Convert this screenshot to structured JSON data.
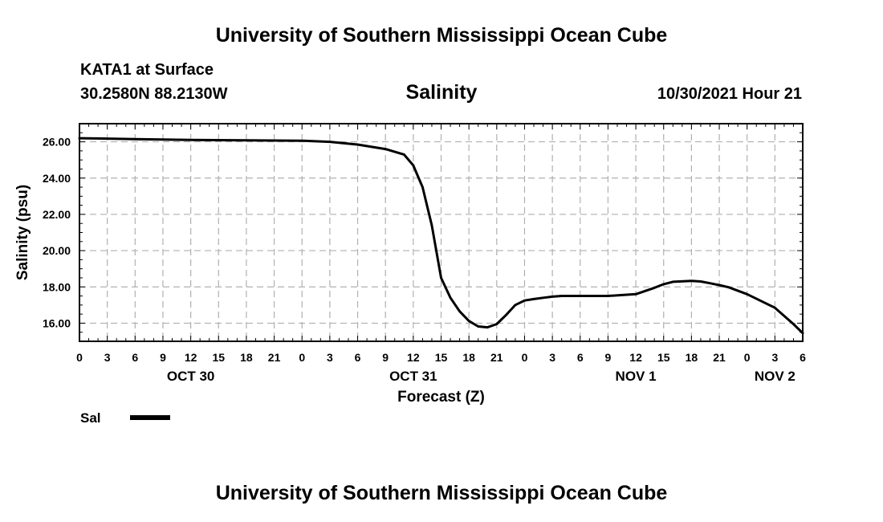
{
  "page": {
    "title_top": "University of Southern Mississippi Ocean Cube",
    "title_bottom": "University of Southern Mississippi Ocean Cube",
    "station": "KATA1 at Surface",
    "coords": "30.2580N  88.2130W",
    "datetime": "10/30/2021 Hour 21"
  },
  "chart_data": {
    "type": "line",
    "title": "Salinity",
    "xlabel": "Forecast (Z)",
    "ylabel": "Salinity (psu)",
    "xlim": [
      0,
      78
    ],
    "ylim": [
      15.0,
      27.0
    ],
    "x_ticks": [
      0,
      3,
      6,
      9,
      12,
      15,
      18,
      21,
      24,
      27,
      30,
      33,
      36,
      39,
      42,
      45,
      48,
      51,
      54,
      57,
      60,
      63,
      66,
      69,
      72,
      75,
      78
    ],
    "x_tick_labels": [
      "0",
      "3",
      "6",
      "9",
      "12",
      "15",
      "18",
      "21",
      "0",
      "3",
      "6",
      "9",
      "12",
      "15",
      "18",
      "21",
      "0",
      "3",
      "6",
      "9",
      "12",
      "15",
      "18",
      "21",
      "0",
      "3",
      "6"
    ],
    "day_labels": [
      {
        "x": 12,
        "label": "OCT 30"
      },
      {
        "x": 36,
        "label": "OCT 31"
      },
      {
        "x": 60,
        "label": "NOV 1"
      },
      {
        "x": 75,
        "label": "NOV 2"
      }
    ],
    "y_ticks": [
      16,
      18,
      20,
      22,
      24,
      26
    ],
    "y_tick_labels": [
      "16.00",
      "18.00",
      "20.00",
      "22.00",
      "24.00",
      "26.00"
    ],
    "grid": true,
    "series": [
      {
        "name": "Sal",
        "color": "#000000",
        "x": [
          0,
          6,
          12,
          18,
          24,
          27,
          30,
          33,
          35,
          36,
          37,
          38,
          39,
          40,
          41,
          42,
          43,
          44,
          45,
          46,
          47,
          48,
          49,
          50,
          51,
          52,
          54,
          57,
          60,
          62,
          63,
          64,
          66,
          67,
          68,
          69,
          70,
          72,
          75,
          77,
          78
        ],
        "y": [
          26.2,
          26.15,
          26.1,
          26.08,
          26.06,
          26.0,
          25.85,
          25.6,
          25.3,
          24.7,
          23.5,
          21.4,
          18.5,
          17.4,
          16.65,
          16.12,
          15.82,
          15.77,
          15.95,
          16.45,
          17.0,
          17.25,
          17.33,
          17.4,
          17.46,
          17.5,
          17.5,
          17.5,
          17.6,
          17.95,
          18.15,
          18.28,
          18.33,
          18.3,
          18.2,
          18.1,
          17.98,
          17.6,
          16.85,
          15.95,
          15.45
        ]
      }
    ],
    "legend": [
      {
        "label": "Sal",
        "style": "thick-line"
      }
    ],
    "legend_position": "bottom-left"
  }
}
